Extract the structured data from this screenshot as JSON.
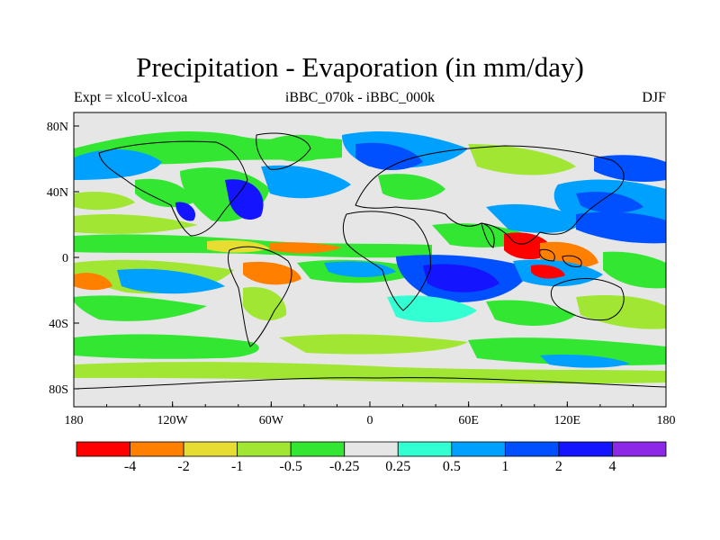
{
  "title": "Precipitation - Evaporation (in mm/day)",
  "experiment_label": "Expt = xlcoU-xlcoa",
  "center_label": "iBBC_070k - iBBC_000k",
  "season_label": "DJF",
  "x_ticks": [
    "180",
    "120W",
    "60W",
    "0",
    "60E",
    "120E",
    "180"
  ],
  "y_ticks": [
    "80N",
    "40N",
    "0",
    "40S",
    "80S"
  ],
  "colorbar": {
    "colors": [
      "#ff0000",
      "#ff8000",
      "#e6dc32",
      "#a0e632",
      "#32e632",
      "#e6e6e6",
      "#32ffd2",
      "#00a0ff",
      "#0050ff",
      "#1414ff",
      "#8c28e6"
    ],
    "labels": [
      "-4",
      "-2",
      "-1",
      "-0.5",
      "-0.25",
      "0.25",
      "0.5",
      "1",
      "2",
      "4"
    ]
  }
}
